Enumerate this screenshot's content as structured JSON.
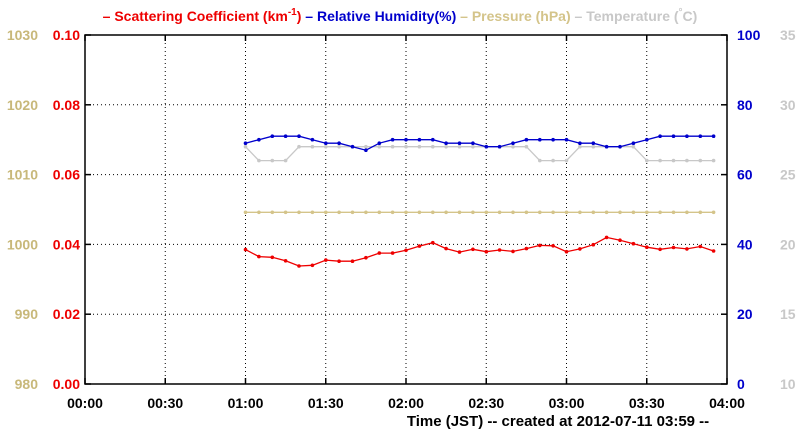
{
  "chart_data": {
    "type": "line",
    "legend": {
      "placement": "top",
      "items": [
        {
          "text": "Scattering Coefficient (km",
          "sup": "-1",
          "tail": ")",
          "color": "#ee0000"
        },
        {
          "text": "Relative Humidity(%)",
          "sup": "",
          "tail": "",
          "color": "#0000cc"
        },
        {
          "text": "Pressure (hPa)",
          "sup": "",
          "tail": "",
          "color": "#d4c48a"
        },
        {
          "text": "Temperature (",
          "sup": "°",
          "tail": "C)",
          "color": "#c8c8c8"
        }
      ]
    },
    "xlabel": "Time (JST)  -- created at 2012-07-11 03:59 --",
    "x_ticks": [
      "00:00",
      "00:30",
      "01:00",
      "01:30",
      "02:00",
      "02:30",
      "03:00",
      "03:30",
      "04:00"
    ],
    "xlim_minutes": [
      0,
      240
    ],
    "grid": true,
    "axes": {
      "pressure": {
        "color": "#c8b87a",
        "ylim": [
          980,
          1030
        ],
        "ticks": [
          "980",
          "990",
          "1000",
          "1010",
          "1020",
          "1030"
        ]
      },
      "scattering": {
        "color": "#ee0000",
        "ylim": [
          0,
          0.1
        ],
        "ticks": [
          "0.00",
          "0.02",
          "0.04",
          "0.06",
          "0.08",
          "0.10"
        ]
      },
      "humidity": {
        "color": "#0000cc",
        "ylim": [
          0,
          100
        ],
        "ticks": [
          "0",
          "20",
          "40",
          "60",
          "80",
          "100"
        ]
      },
      "temperature": {
        "color": "#c8c8c8",
        "ylim": [
          10,
          35
        ],
        "ticks": [
          "10",
          "15",
          "20",
          "25",
          "30",
          "35"
        ]
      }
    },
    "x_minutes": [
      60,
      65,
      70,
      75,
      80,
      85,
      90,
      95,
      100,
      105,
      110,
      115,
      120,
      125,
      130,
      135,
      140,
      145,
      150,
      155,
      160,
      165,
      170,
      175,
      180,
      185,
      190,
      195,
      200,
      205,
      210,
      215,
      220,
      225,
      230,
      235
    ],
    "series": [
      {
        "key": "scattering",
        "axis": "scattering",
        "color": "#ee0000",
        "values": [
          0.0385,
          0.0365,
          0.0363,
          0.0353,
          0.0338,
          0.034,
          0.0355,
          0.0352,
          0.0352,
          0.0362,
          0.0375,
          0.0375,
          0.0383,
          0.0395,
          0.0405,
          0.0388,
          0.0378,
          0.0386,
          0.0379,
          0.0384,
          0.038,
          0.0388,
          0.0397,
          0.0396,
          0.0379,
          0.0387,
          0.0399,
          0.042,
          0.0412,
          0.0402,
          0.0392,
          0.0386,
          0.0391,
          0.0387,
          0.0394,
          0.0381
        ]
      },
      {
        "key": "humidity",
        "axis": "humidity",
        "color": "#0000cc",
        "values": [
          69,
          70,
          71,
          71,
          71,
          70,
          69,
          69,
          68,
          67,
          69,
          70,
          70,
          70,
          70,
          69,
          69,
          69,
          68,
          68,
          69,
          70,
          70,
          70,
          70,
          69,
          69,
          68,
          68,
          69,
          70,
          71,
          71,
          71,
          71,
          71
        ]
      },
      {
        "key": "pressure",
        "axis": "pressure",
        "color": "#d4c48a",
        "values": [
          1004.6,
          1004.6,
          1004.6,
          1004.6,
          1004.6,
          1004.6,
          1004.6,
          1004.6,
          1004.6,
          1004.6,
          1004.6,
          1004.6,
          1004.6,
          1004.6,
          1004.6,
          1004.6,
          1004.6,
          1004.6,
          1004.6,
          1004.6,
          1004.6,
          1004.6,
          1004.6,
          1004.6,
          1004.6,
          1004.6,
          1004.6,
          1004.6,
          1004.6,
          1004.6,
          1004.6,
          1004.6,
          1004.6,
          1004.6,
          1004.6,
          1004.6
        ]
      },
      {
        "key": "temperature",
        "axis": "temperature",
        "color": "#c8c8c8",
        "values": [
          27,
          26,
          26,
          26,
          27,
          27,
          27,
          27,
          27,
          27,
          27,
          27,
          27,
          27,
          27,
          27,
          27,
          27,
          27,
          27,
          27,
          27,
          26,
          26,
          26,
          27,
          27,
          27,
          27,
          27,
          26,
          26,
          26,
          26,
          26,
          26
        ]
      }
    ]
  }
}
